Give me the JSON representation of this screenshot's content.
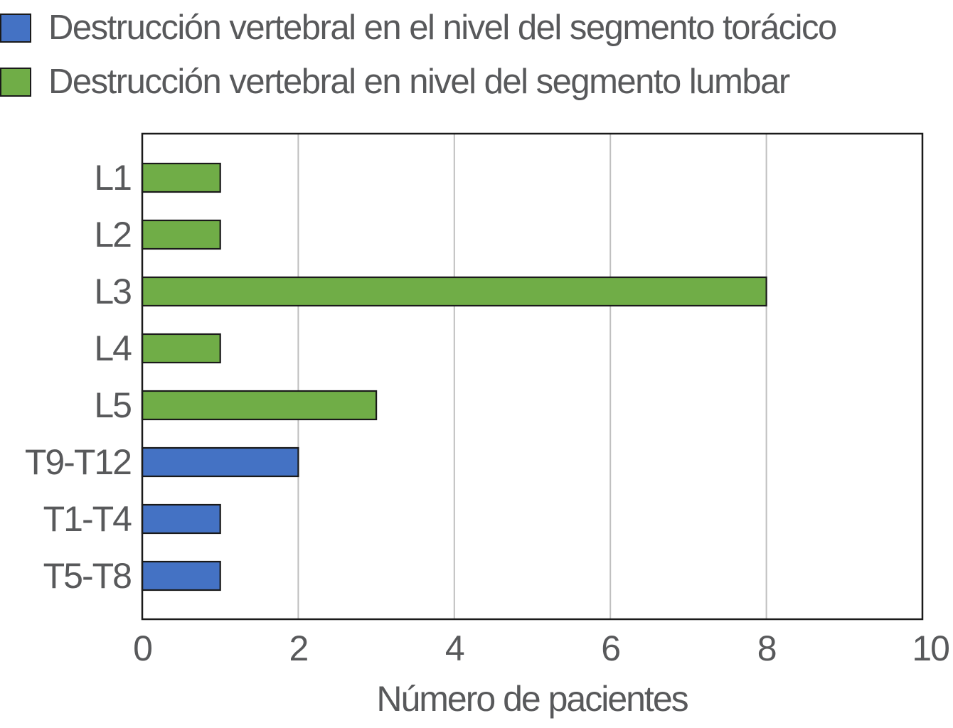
{
  "colors": {
    "thoracic": "#4472c4",
    "lumbar": "#70ad47",
    "axis": "#1a1a1a",
    "grid": "#bfbfbf",
    "text": "#58595b"
  },
  "legend": {
    "items": [
      {
        "label": "Destrucción vertebral en el nivel del segmento torácico",
        "color": "#4472c4"
      },
      {
        "label": "Destrucción vertebral en nivel del segmento lumbar",
        "color": "#70ad47"
      }
    ]
  },
  "chart_data": {
    "type": "bar",
    "orientation": "horizontal",
    "categories": [
      "L1",
      "L2",
      "L3",
      "L4",
      "L5",
      "T9-T12",
      "T1-T4",
      "T5-T8"
    ],
    "values": [
      1,
      1,
      8,
      1,
      3,
      2,
      1,
      1
    ],
    "series_of_category": [
      "lumbar",
      "lumbar",
      "lumbar",
      "lumbar",
      "lumbar",
      "thoracic",
      "thoracic",
      "thoracic"
    ],
    "series": [
      {
        "key": "thoracic",
        "name": "Destrucción vertebral en el nivel del segmento torácico"
      },
      {
        "key": "lumbar",
        "name": "Destrucción vertebral en nivel del segmento lumbar"
      }
    ],
    "xlabel": "Número de pacientes",
    "ylabel": "",
    "xlim": [
      0,
      10
    ],
    "xticks": [
      0,
      2,
      4,
      6,
      8,
      10
    ],
    "grid": "vertical",
    "legend_position": "top-left"
  }
}
